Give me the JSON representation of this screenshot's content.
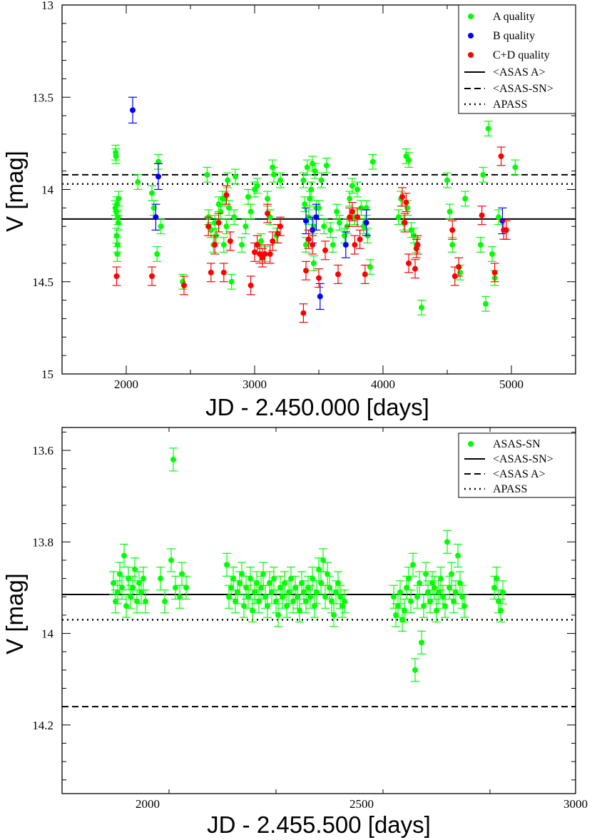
{
  "colors": {
    "a_quality": "#00ff00",
    "b_quality": "#0000ff",
    "cd_quality": "#ff0000",
    "line": "#000000"
  },
  "chart_data": [
    {
      "type": "scatter",
      "xlabel": "JD - 2.450.000 [days]",
      "ylabel": "V [mag]",
      "xlim": [
        1500,
        5500
      ],
      "ylim": [
        13,
        15
      ],
      "y_inverted": true,
      "xticks": [
        2000,
        3000,
        4000,
        5000
      ],
      "xtick_labels": [
        "2000",
        "3000",
        "4000",
        "5000"
      ],
      "yticks": [
        13,
        13.5,
        14,
        14.5,
        15
      ],
      "ytick_labels": [
        "13",
        "13.5",
        "14",
        "14.5",
        "15"
      ],
      "legend_position": "top-right",
      "legend": [
        "A quality",
        "B quality",
        "C+D quality",
        "<ASAS A>",
        "<ASAS-SN>",
        "APASS"
      ],
      "series": [
        {
          "name": "A quality",
          "color": "#00ff00",
          "x": [
            1915,
            1922,
            1928,
            1935,
            1940,
            1918,
            1925,
            1932,
            1920,
            1930,
            1938,
            2090,
            2200,
            2215,
            2240,
            2250,
            2270,
            2440,
            2630,
            2640,
            2660,
            2680,
            2700,
            2720,
            2735,
            2750,
            2760,
            2780,
            2790,
            2800,
            2820,
            2840,
            2850,
            2900,
            2930,
            2950,
            2970,
            3000,
            3020,
            3050,
            3080,
            3100,
            3120,
            3140,
            3170,
            3200,
            3380,
            3390,
            3400,
            3410,
            3420,
            3430,
            3440,
            3450,
            3460,
            3470,
            3480,
            3500,
            3520,
            3540,
            3560,
            3590,
            3610,
            3640,
            3660,
            3700,
            3720,
            3740,
            3760,
            3780,
            3800,
            3830,
            3850,
            3870,
            3880,
            3900,
            3920,
            4120,
            4140,
            4160,
            4180,
            4190,
            4200,
            4220,
            4240,
            4260,
            4300,
            4500,
            4520,
            4540,
            4600,
            4640,
            4760,
            4780,
            4800,
            4820,
            4850,
            4870,
            4900,
            5030,
            2770,
            3460,
            3150,
            3860,
            2690
          ],
          "y": [
            14.1,
            14.12,
            14.08,
            14.15,
            14.05,
            13.8,
            14.25,
            14.3,
            13.82,
            14.35,
            14.18,
            13.96,
            14.02,
            14.1,
            14.35,
            13.85,
            14.2,
            14.5,
            13.92,
            14.15,
            14.22,
            14.3,
            14.25,
            14.08,
            14.12,
            14.05,
            14.3,
            14.2,
            13.95,
            14.1,
            14.5,
            14.15,
            13.93,
            14.3,
            14.2,
            14.04,
            14.12,
            14.0,
            13.98,
            14.28,
            14.35,
            14.05,
            14.15,
            13.88,
            14.25,
            13.95,
            13.95,
            14.08,
            14.3,
            13.88,
            14.15,
            14.05,
            14.0,
            13.86,
            14.2,
            13.9,
            14.1,
            14.1,
            13.95,
            14.2,
            13.87,
            14.22,
            14.3,
            14.12,
            14.18,
            14.25,
            14.2,
            14.05,
            13.98,
            14.15,
            14.0,
            14.1,
            14.2,
            14.1,
            14.25,
            14.42,
            13.85,
            14.15,
            14.05,
            14.18,
            13.82,
            14.1,
            13.84,
            14.22,
            14.25,
            14.3,
            14.64,
            13.95,
            14.12,
            14.3,
            14.45,
            14.05,
            14.3,
            13.92,
            14.62,
            13.67,
            14.35,
            14.48,
            14.15,
            13.88,
            14.05,
            14.4,
            13.92,
            14.18,
            14.18
          ],
          "yerr": 0.04
        },
        {
          "name": "B quality",
          "color": "#0000ff",
          "x": [
            2050,
            2230,
            2250,
            3400,
            3450,
            3480,
            3510,
            3710,
            3870,
            4930
          ],
          "y": [
            13.57,
            14.15,
            13.93,
            14.17,
            14.22,
            14.15,
            14.58,
            14.3,
            14.18,
            14.17
          ],
          "yerr": 0.07
        },
        {
          "name": "C+D quality",
          "color": "#ff0000",
          "x": [
            1925,
            2200,
            2450,
            2640,
            2660,
            2690,
            2720,
            2760,
            2780,
            2810,
            2970,
            3000,
            3020,
            3040,
            3060,
            3080,
            3100,
            3120,
            3140,
            3180,
            3200,
            3380,
            3400,
            3420,
            3450,
            3500,
            3550,
            3650,
            3740,
            3760,
            3780,
            3800,
            3820,
            3860,
            4150,
            4170,
            4180,
            4200,
            4250,
            4260,
            4270,
            4540,
            4560,
            4590,
            4770,
            4870,
            4920,
            4940,
            4960
          ],
          "y": [
            14.47,
            14.47,
            14.52,
            14.2,
            14.45,
            14.3,
            14.18,
            14.45,
            14.03,
            14.28,
            14.52,
            14.34,
            14.3,
            14.35,
            14.37,
            14.35,
            14.13,
            14.35,
            14.28,
            14.24,
            14.2,
            14.67,
            14.44,
            14.27,
            14.3,
            14.48,
            14.33,
            14.46,
            14.15,
            14.12,
            14.3,
            14.15,
            14.27,
            14.46,
            14.04,
            14.18,
            14.07,
            14.4,
            14.43,
            14.32,
            14.3,
            14.22,
            14.47,
            14.42,
            14.14,
            14.45,
            13.82,
            14.22,
            14.22
          ],
          "yerr": 0.05
        }
      ],
      "hlines": [
        {
          "name": "<ASAS A>",
          "y": 14.16,
          "style": "solid"
        },
        {
          "name": "<ASAS-SN>",
          "y": 13.92,
          "style": "dashed"
        },
        {
          "name": "APASS",
          "y": 13.97,
          "style": "dotted"
        }
      ]
    },
    {
      "type": "scatter",
      "xlabel": "JD - 2.455.500 [days]",
      "ylabel": "V [mag]",
      "xlim": [
        1800,
        3000
      ],
      "ylim": [
        13.55,
        14.35
      ],
      "y_inverted": true,
      "xticks": [
        2000,
        2500,
        3000
      ],
      "xtick_labels": [
        "2000",
        "2500",
        "3000"
      ],
      "yticks": [
        13.6,
        13.8,
        14.0,
        14.2
      ],
      "ytick_labels": [
        "13.6",
        "13.8",
        "14",
        "14.2"
      ],
      "legend_position": "top-right",
      "legend": [
        "ASAS-SN",
        "<ASAS-SN>",
        "<ASAS A>",
        "APASS"
      ],
      "series": [
        {
          "name": "ASAS-SN",
          "color": "#00ff00",
          "x": [
            1920,
            1925,
            1930,
            1935,
            1940,
            1945,
            1950,
            1955,
            1960,
            1965,
            1970,
            1975,
            1980,
            1985,
            1990,
            1995,
            2030,
            2040,
            2055,
            2060,
            2065,
            2075,
            2080,
            2090,
            2185,
            2190,
            2195,
            2200,
            2205,
            2210,
            2215,
            2220,
            2225,
            2230,
            2235,
            2240,
            2245,
            2250,
            2255,
            2260,
            2265,
            2270,
            2275,
            2280,
            2285,
            2290,
            2295,
            2300,
            2305,
            2310,
            2315,
            2320,
            2325,
            2330,
            2335,
            2340,
            2345,
            2350,
            2355,
            2360,
            2365,
            2370,
            2375,
            2380,
            2385,
            2390,
            2395,
            2400,
            2405,
            2410,
            2415,
            2420,
            2425,
            2430,
            2435,
            2440,
            2445,
            2450,
            2455,
            2460,
            2575,
            2580,
            2585,
            2590,
            2595,
            2600,
            2605,
            2610,
            2615,
            2620,
            2625,
            2630,
            2635,
            2640,
            2645,
            2650,
            2655,
            2660,
            2665,
            2670,
            2675,
            2680,
            2685,
            2690,
            2695,
            2700,
            2705,
            2710,
            2715,
            2720,
            2725,
            2730,
            2735,
            2740,
            2810,
            2815,
            2820,
            2825,
            2830
          ],
          "y": [
            13.89,
            13.93,
            13.91,
            13.87,
            13.9,
            13.83,
            13.94,
            13.88,
            13.92,
            13.9,
            13.86,
            13.93,
            13.89,
            13.91,
            13.88,
            13.93,
            13.88,
            13.93,
            13.84,
            13.62,
            13.9,
            13.92,
            13.87,
            13.9,
            13.85,
            13.92,
            13.9,
            13.88,
            13.93,
            13.91,
            13.89,
            13.87,
            13.94,
            13.9,
            13.92,
            13.88,
            13.95,
            13.91,
            13.89,
            13.93,
            13.9,
            13.87,
            13.92,
            13.94,
            13.89,
            13.91,
            13.88,
            13.93,
            13.96,
            13.9,
            13.92,
            13.89,
            13.94,
            13.91,
            13.88,
            13.93,
            13.9,
            13.92,
            13.95,
            13.89,
            13.91,
            13.93,
            13.9,
            13.92,
            13.88,
            13.94,
            13.91,
            13.86,
            13.89,
            13.84,
            13.92,
            13.87,
            13.9,
            13.93,
            13.96,
            13.91,
            13.89,
            13.92,
            13.94,
            13.93,
            13.92,
            13.96,
            13.94,
            13.91,
            13.97,
            13.95,
            13.9,
            13.88,
            13.93,
            13.85,
            14.08,
            13.92,
            13.89,
            14.02,
            13.94,
            13.87,
            13.91,
            13.93,
            13.89,
            13.9,
            13.95,
            13.91,
            13.88,
            13.92,
            13.94,
            13.8,
            13.9,
            13.87,
            13.93,
            13.91,
            13.83,
            13.89,
            13.92,
            13.94,
            13.9,
            13.88,
            13.93,
            13.95,
            13.91
          ],
          "yerr": 0.025
        }
      ],
      "hlines": [
        {
          "name": "<ASAS-SN>",
          "y": 13.915,
          "style": "solid"
        },
        {
          "name": "<ASAS A>",
          "y": 14.16,
          "style": "dashed"
        },
        {
          "name": "APASS",
          "y": 13.97,
          "style": "dotted"
        }
      ]
    }
  ]
}
